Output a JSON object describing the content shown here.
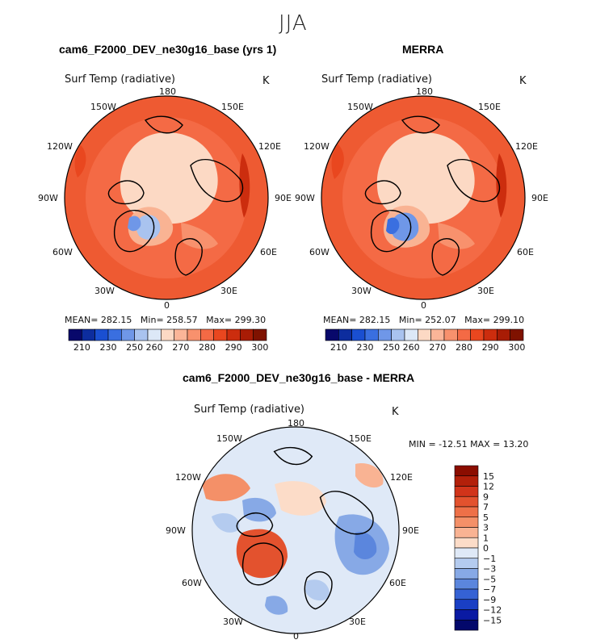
{
  "season": "JJA",
  "panels": {
    "left": {
      "header": "cam6_F2000_DEV_ne30g16_base (yrs 1)",
      "varname": "Surf Temp (radiative)",
      "units": "K",
      "stats": {
        "mean_label": "MEAN=",
        "mean": "282.15",
        "min_label": "Min=",
        "min": "258.57",
        "max_label": "Max=",
        "max": "299.30"
      }
    },
    "right": {
      "header": "MERRA",
      "varname": "Surf Temp (radiative)",
      "units": "K",
      "stats": {
        "mean_label": "MEAN=",
        "mean": "282.15",
        "min_label": "Min=",
        "min": "252.07",
        "max_label": "Max=",
        "max": "299.10"
      }
    },
    "diff": {
      "header": "cam6_F2000_DEV_ne30g16_base - MERRA",
      "varname": "Surf Temp (radiative)",
      "units": "K",
      "minmax": "MIN = -12.51 MAX =  13.20"
    }
  },
  "lon_labels": {
    "n180": "180",
    "w150": "150W",
    "e150": "150E",
    "w120": "120W",
    "e120": "120E",
    "w90": "90W",
    "e90": "90E",
    "w60": "60W",
    "e60": "60E",
    "w30": "30W",
    "e30": "30E",
    "z0": "0"
  },
  "chart_data": [
    {
      "type": "heatmap",
      "projection": "north polar stereographic",
      "title": "cam6_F2000_DEV_ne30g16_base (yrs 1)",
      "variable": "Surf Temp (radiative)",
      "units": "K",
      "mean": 282.15,
      "min": 258.57,
      "max": 299.3,
      "colorbar": {
        "ticks": [
          "210",
          "230",
          "250",
          "260",
          "270",
          "280",
          "290",
          "300"
        ],
        "colors": [
          "#08086b",
          "#0d2d9e",
          "#1a4fd1",
          "#3a6fe0",
          "#6f97e8",
          "#a9c3ef",
          "#dce8f7",
          "#fcd9c4",
          "#fbb598",
          "#f8916d",
          "#f46a45",
          "#e9471f",
          "#cc2d0e",
          "#a81c05",
          "#7f1200"
        ]
      }
    },
    {
      "type": "heatmap",
      "projection": "north polar stereographic",
      "title": "MERRA",
      "variable": "Surf Temp (radiative)",
      "units": "K",
      "mean": 282.15,
      "min": 252.07,
      "max": 299.1,
      "colorbar": {
        "ticks": [
          "210",
          "230",
          "250",
          "260",
          "270",
          "280",
          "290",
          "300"
        ],
        "colors": [
          "#08086b",
          "#0d2d9e",
          "#1a4fd1",
          "#3a6fe0",
          "#6f97e8",
          "#a9c3ef",
          "#dce8f7",
          "#fcd9c4",
          "#fbb598",
          "#f8916d",
          "#f46a45",
          "#e9471f",
          "#cc2d0e",
          "#a81c05",
          "#7f1200"
        ]
      }
    },
    {
      "type": "heatmap",
      "projection": "north polar stereographic",
      "title": "cam6_F2000_DEV_ne30g16_base - MERRA",
      "variable": "Surf Temp (radiative)",
      "units": "K",
      "min": -12.51,
      "max": 13.2,
      "colorbar": {
        "ticks": [
          "15",
          "12",
          "9",
          "7",
          "5",
          "3",
          "1",
          "0",
          "−1",
          "−3",
          "−5",
          "−7",
          "−9",
          "−12",
          "−15"
        ],
        "colors": [
          "#8b0d00",
          "#b3200a",
          "#d1341a",
          "#e3522e",
          "#ee7048",
          "#f49068",
          "#f9b393",
          "#fcdcc8",
          "#dfe9f7",
          "#b4cbef",
          "#87a9e6",
          "#5b86dd",
          "#3562d4",
          "#1a3fc4",
          "#0a1aa3",
          "#03086b"
        ]
      }
    }
  ]
}
